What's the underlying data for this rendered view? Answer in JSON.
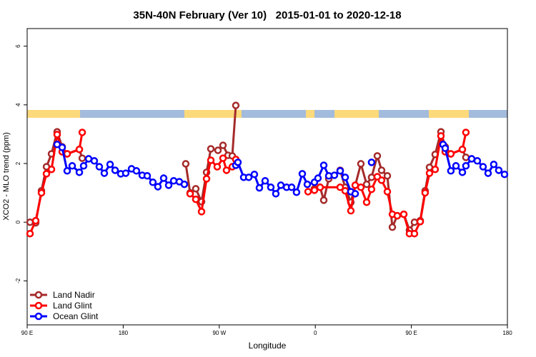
{
  "chart_data": {
    "type": "line",
    "title": "35N-40N February (Ver 10)   2015-01-01 to 2020-12-18",
    "x_label": "Longitude",
    "y_label": "XCO2 - MLO trend (ppm)",
    "xlim": [
      90,
      540
    ],
    "ylim": [
      -3.5,
      6.6
    ],
    "xticks": [
      {
        "value": 90,
        "label": "90 E"
      },
      {
        "value": 180,
        "label": "180"
      },
      {
        "value": 270,
        "label": "90 W"
      },
      {
        "value": 360,
        "label": "0"
      },
      {
        "value": 450,
        "label": "90 E"
      },
      {
        "value": 540,
        "label": "180"
      }
    ],
    "yticks": [
      -2,
      0,
      2,
      4,
      6
    ],
    "legend": "bottom-left",
    "series": [
      {
        "name": "Land Nadir",
        "color": "#a52a2a",
        "x": [
          92.7,
          98.0,
          103.4,
          108.1,
          112.8,
          118.1,
          122.8,
          127.5,
          138.9,
          141.6,
          null,
          238.6,
          242.7,
          248.0,
          253.4,
          258.1,
          262.1,
          268.8,
          273.5,
          278.2,
          282.2,
          285.5,
          null,
          359.2,
          364.5,
          367.9,
          372.6,
          383.3,
          388.0,
          393.3,
          402.7,
          408.1,
          412.7,
          418.1,
          422.1,
          427.5,
          432.2,
          436.8,
          442.9,
          448.2,
          452.9,
          458.3,
          462.9,
          467.0,
          472.3,
          477.7,
          481.7,
          487.0,
          497.8,
          501.1
        ],
        "values": [
          0,
          -0.02,
          1.07,
          1.89,
          2.33,
          3.08,
          2.57,
          2.33,
          2.48,
          2.18,
          null,
          1.99,
          1.0,
          1.14,
          0.7,
          1.7,
          2.5,
          2.45,
          2.62,
          2.28,
          2.26,
          3.98,
          null,
          1.14,
          1.19,
          0.75,
          1.48,
          1.77,
          1.19,
          0.68,
          1.99,
          1.29,
          1.53,
          2.26,
          1.77,
          1.58,
          -0.17,
          0.22,
          0.27,
          -0.27,
          0,
          0.05,
          1.07,
          1.87,
          2.31,
          3.08,
          2.57,
          2.33,
          2.48,
          2.21
        ]
      },
      {
        "name": "Land Glint",
        "color": "#ff0000",
        "x": [
          92.7,
          98.0,
          103.4,
          108.1,
          112.8,
          118.1,
          122.8,
          127.5,
          138.9,
          141.6,
          null,
          242.7,
          248.0,
          253.4,
          258.1,
          262.1,
          268.1,
          273.5,
          276.8,
          282.2,
          285.5,
          null,
          353.2,
          359.2,
          364.5,
          383.3,
          388.0,
          393.3,
          397.4,
          402.7,
          408.1,
          412.7,
          418.1,
          422.1,
          427.5,
          432.2,
          436.8,
          442.9,
          448.2,
          452.9,
          458.3,
          462.9,
          467.0,
          472.3,
          477.7,
          481.7,
          487.0,
          497.8,
          501.1
        ],
        "values": [
          -0.39,
          0.05,
          1.0,
          1.65,
          1.8,
          2.99,
          2.4,
          2.33,
          2.48,
          3.06,
          null,
          0.97,
          0.78,
          0.36,
          1.48,
          2.11,
          1.89,
          2.18,
          1.77,
          1.89,
          2.14,
          null,
          1.04,
          1.09,
          1.19,
          1.19,
          1.07,
          0.39,
          1.26,
          1.19,
          0.68,
          1.12,
          1.55,
          1.43,
          1.04,
          0.27,
          0.22,
          0.27,
          -0.39,
          -0.39,
          0.02,
          1.0,
          1.67,
          1.8,
          2.94,
          2.4,
          2.33,
          2.48,
          3.06
        ]
      },
      {
        "name": "Ocean Glint",
        "color": "#0000ff",
        "x": [
          118.1,
          122.8,
          127.5,
          132.2,
          138.9,
          142.9,
          147.6,
          152.9,
          157.6,
          162.3,
          167.7,
          172.4,
          177.7,
          182.4,
          187.8,
          192.4,
          197.8,
          202.5,
          207.8,
          212.5,
          217.9,
          222.6,
          227.3,
          232.6,
          237.3,
          null,
          285.5,
          287.5,
          292.9,
          297.6,
          302.9,
          307.6,
          313.0,
          318.3,
          323.0,
          327.7,
          333.1,
          337.8,
          342.4,
          347.8,
          352.5,
          359.2,
          362.5,
          367.9,
          372.6,
          377.9,
          383.3,
          388.0,
          393.3,
          397.4,
          null,
          412.7,
          null,
          479.7,
          481.7,
          487.0,
          491.8,
          497.8,
          501.1,
          506.5,
          511.8,
          517.2,
          521.9,
          527.2,
          531.9,
          537.3
        ],
        "values": [
          2.65,
          2.55,
          1.75,
          1.92,
          1.7,
          1.92,
          2.16,
          2.09,
          1.89,
          1.67,
          1.97,
          1.77,
          1.65,
          1.67,
          1.82,
          1.75,
          1.6,
          1.58,
          1.36,
          1.21,
          1.5,
          1.26,
          1.41,
          1.38,
          1.29,
          null,
          1.94,
          2.04,
          1.53,
          1.53,
          1.63,
          1.17,
          1.41,
          1.19,
          0.97,
          1.26,
          1.19,
          1.19,
          1.02,
          1.65,
          1.29,
          1.36,
          1.5,
          1.94,
          1.58,
          1.6,
          1.75,
          1.53,
          1.04,
          0.97,
          null,
          2.04,
          null,
          2.65,
          2.52,
          1.75,
          1.92,
          1.7,
          1.92,
          2.16,
          2.09,
          1.89,
          1.67,
          1.97,
          1.77,
          1.63
        ]
      }
    ]
  }
}
